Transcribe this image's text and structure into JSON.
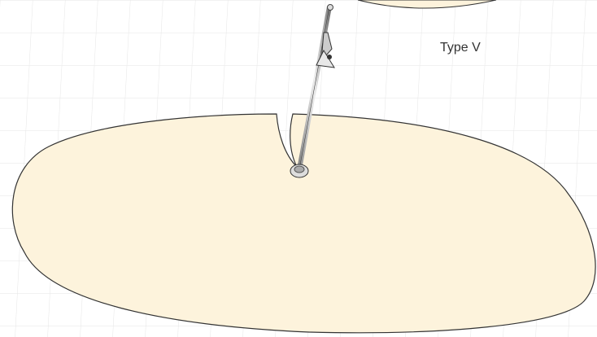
{
  "label": "Type V"
}
